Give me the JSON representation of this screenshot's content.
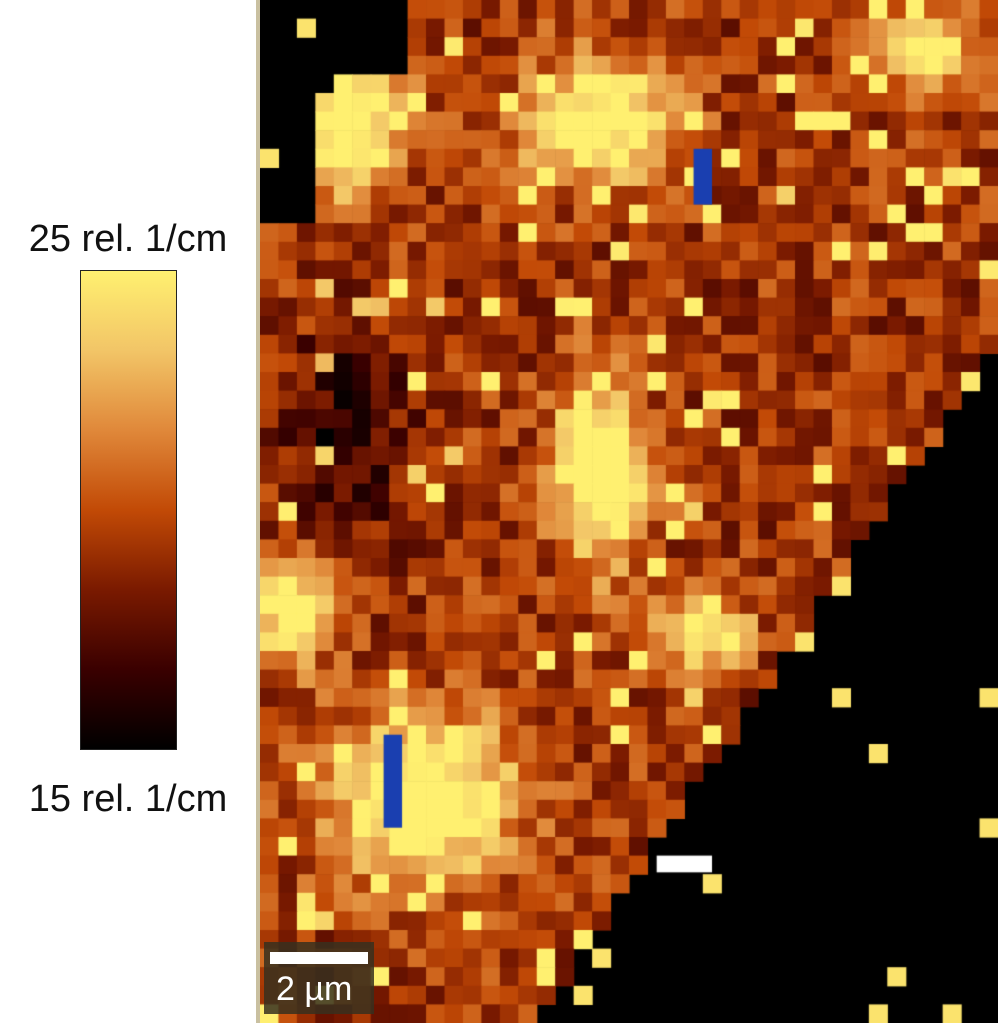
{
  "colorbar": {
    "max_label": "25 rel. 1/cm",
    "min_label": "15 rel. 1/cm",
    "max_value": 25,
    "min_value": 15,
    "unit": "rel. 1/cm",
    "colormap": [
      "#000000",
      "#3a0000",
      "#7a1a00",
      "#c24a06",
      "#e0883a",
      "#f2c567",
      "#fff070"
    ]
  },
  "scale_bar": {
    "label": "2 µm",
    "length_um": 2
  },
  "colors": {
    "out_of_range_low": "#1a3fb0",
    "out_of_range_high": "#ffffff",
    "frame_edge": "#c9c0a0"
  }
}
